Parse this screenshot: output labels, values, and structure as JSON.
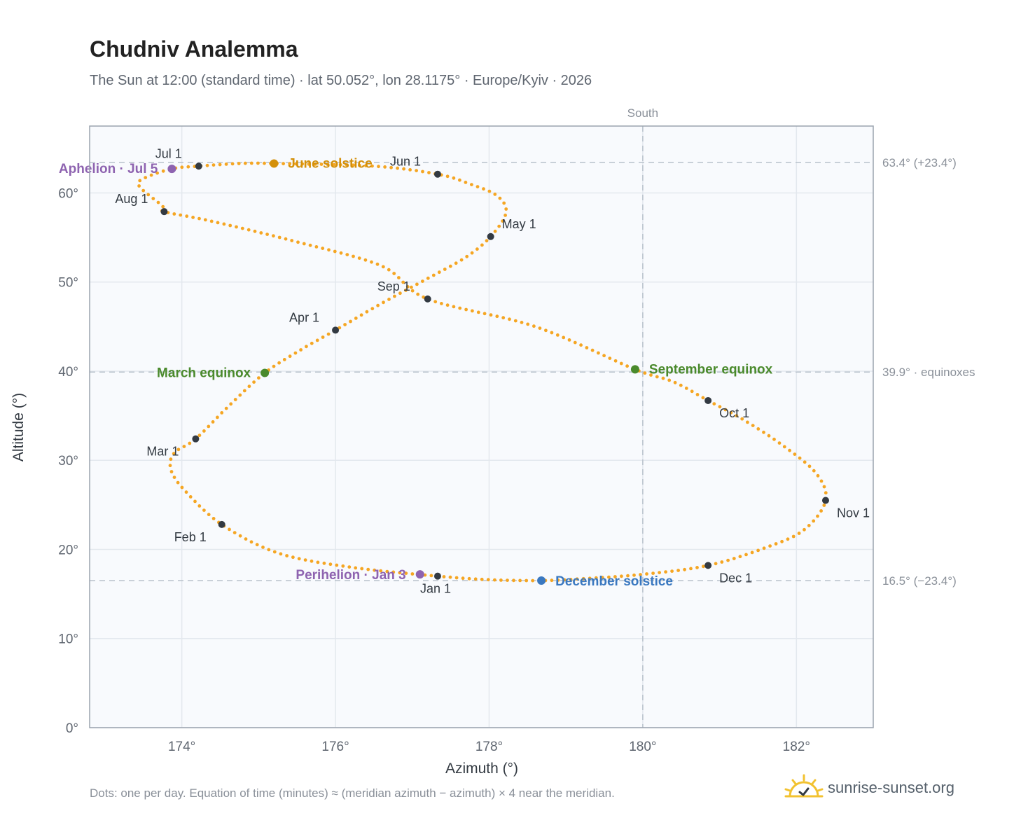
{
  "header": {
    "title": "Chudniv Analemma",
    "subtitle": "The Sun at 12:00 (standard time) · lat 50.052°, lon 28.1175° · Europe/Kyiv · 2026"
  },
  "footer": {
    "note": "Dots: one per day. Equation of time (minutes) ≈ (meridian azimuth − azimuth) × 4 near the meridian.",
    "brand": "sunrise-sunset.org"
  },
  "chart_data": {
    "type": "scatter",
    "title": "Chudniv Analemma",
    "xlabel": "Azimuth (°)",
    "ylabel": "Altitude (°)",
    "xlim": [
      172.8,
      183.0
    ],
    "ylim": [
      0,
      67.5
    ],
    "xticks": [
      174,
      176,
      178,
      180,
      182
    ],
    "xtick_labels": [
      "174°",
      "176°",
      "178°",
      "180°",
      "182°"
    ],
    "yticks": [
      0,
      10,
      20,
      30,
      40,
      50,
      60
    ],
    "ytick_labels": [
      "0°",
      "10°",
      "20°",
      "30°",
      "40°",
      "50°",
      "60°"
    ],
    "grid": true,
    "meridian": {
      "x": 180,
      "label": "South"
    },
    "reference_lines": [
      {
        "y": 63.4,
        "label": "63.4° (+23.4°)"
      },
      {
        "y": 39.9,
        "label": "39.9° · equinoxes"
      },
      {
        "y": 16.5,
        "label": "16.5° (−23.4°)"
      }
    ],
    "series": [
      {
        "dot_color": "#f5a623",
        "points": [
          [
            177.33,
            17.0
          ],
          [
            176.2,
            18.0
          ],
          [
            175.25,
            19.6
          ],
          [
            174.52,
            22.8
          ],
          [
            174.05,
            26.5
          ],
          [
            173.86,
            28.9
          ],
          [
            173.9,
            30.8
          ],
          [
            174.18,
            32.4
          ],
          [
            174.6,
            36.0
          ],
          [
            175.08,
            39.8
          ],
          [
            175.55,
            42.4
          ],
          [
            176.0,
            44.6
          ],
          [
            176.6,
            47.6
          ],
          [
            177.2,
            50.4
          ],
          [
            177.7,
            52.8
          ],
          [
            178.02,
            55.1
          ],
          [
            178.22,
            57.8
          ],
          [
            178.1,
            59.7
          ],
          [
            177.75,
            61.0
          ],
          [
            177.33,
            62.1
          ],
          [
            176.5,
            63.0
          ],
          [
            175.2,
            63.3
          ],
          [
            174.75,
            63.3
          ],
          [
            174.22,
            63.0
          ],
          [
            173.87,
            62.7
          ],
          [
            173.5,
            61.6
          ],
          [
            173.45,
            60.7
          ],
          [
            173.75,
            58.5
          ],
          [
            173.77,
            57.9
          ],
          [
            174.4,
            56.8
          ],
          [
            175.5,
            54.5
          ],
          [
            176.6,
            51.8
          ],
          [
            177.2,
            48.1
          ],
          [
            178.6,
            45.0
          ],
          [
            179.9,
            40.2
          ],
          [
            180.4,
            38.8
          ],
          [
            180.85,
            36.7
          ],
          [
            181.3,
            34.6
          ],
          [
            181.8,
            31.8
          ],
          [
            182.25,
            28.6
          ],
          [
            182.38,
            25.5
          ],
          [
            182.1,
            22.2
          ],
          [
            181.6,
            20.2
          ],
          [
            180.85,
            18.2
          ],
          [
            180.0,
            17.2
          ],
          [
            179.2,
            16.7
          ],
          [
            178.68,
            16.5
          ],
          [
            178.0,
            16.6
          ],
          [
            177.33,
            17.0
          ]
        ]
      }
    ],
    "month_markers": [
      {
        "label": "Jan 1",
        "x": 177.33,
        "y": 17.0
      },
      {
        "label": "Feb 1",
        "x": 174.52,
        "y": 22.8
      },
      {
        "label": "Mar 1",
        "x": 174.18,
        "y": 32.4
      },
      {
        "label": "Apr 1",
        "x": 176.0,
        "y": 44.6
      },
      {
        "label": "May 1",
        "x": 178.02,
        "y": 55.1
      },
      {
        "label": "Jun 1",
        "x": 177.33,
        "y": 62.1
      },
      {
        "label": "Jul 1",
        "x": 174.22,
        "y": 63.0
      },
      {
        "label": "Aug 1",
        "x": 173.77,
        "y": 57.9
      },
      {
        "label": "Sep 1",
        "x": 177.2,
        "y": 48.1
      },
      {
        "label": "Oct 1",
        "x": 180.85,
        "y": 36.7
      },
      {
        "label": "Nov 1",
        "x": 182.38,
        "y": 25.5
      },
      {
        "label": "Dec 1",
        "x": 180.85,
        "y": 18.2
      }
    ],
    "special_markers": [
      {
        "label": "June solstice",
        "x": 175.2,
        "y": 63.3,
        "color": "#d4900a"
      },
      {
        "label": "Aphelion · Jul 5",
        "x": 173.87,
        "y": 62.7,
        "color": "#8e63b0"
      },
      {
        "label": "March equinox",
        "x": 175.08,
        "y": 39.8,
        "color": "#4a8a2c"
      },
      {
        "label": "September equinox",
        "x": 179.9,
        "y": 40.2,
        "color": "#4a8a2c"
      },
      {
        "label": "December solstice",
        "x": 178.68,
        "y": 16.5,
        "color": "#3a78c0"
      },
      {
        "label": "Perihelion · Jan 3",
        "x": 177.1,
        "y": 17.2,
        "color": "#8e63b0"
      }
    ]
  }
}
